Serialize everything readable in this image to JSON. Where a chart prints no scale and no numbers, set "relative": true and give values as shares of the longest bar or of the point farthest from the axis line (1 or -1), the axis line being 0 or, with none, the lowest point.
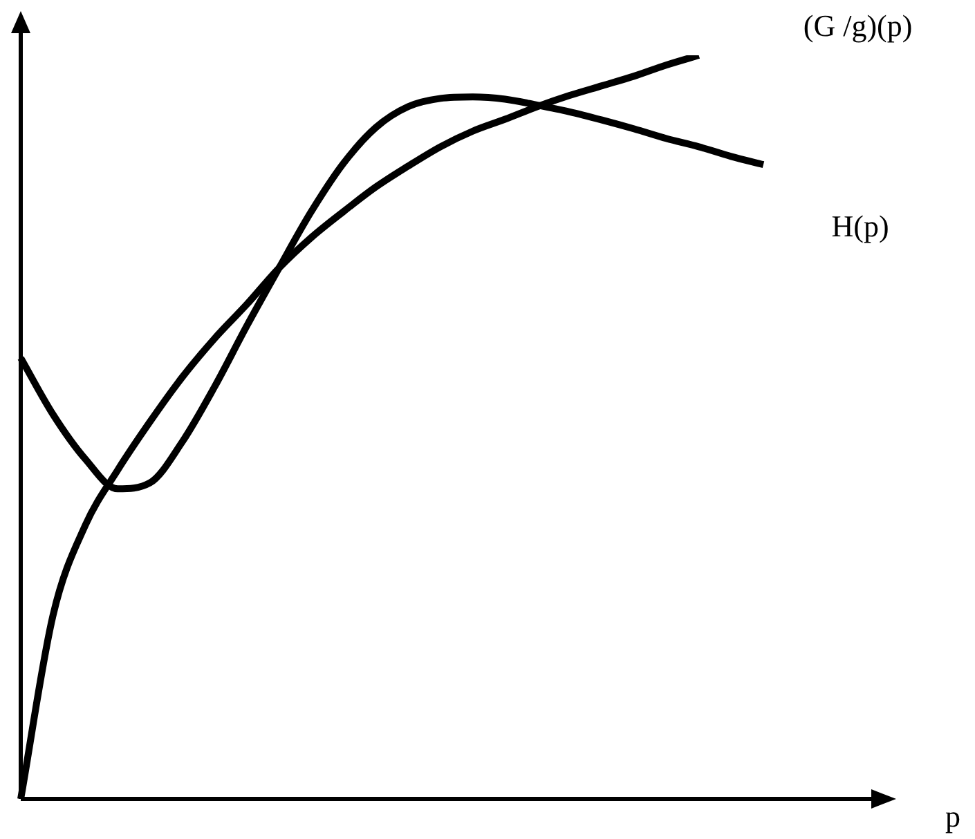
{
  "chart_data": {
    "type": "line",
    "relative": true,
    "annotations": [
      "p"
    ],
    "marker": "none",
    "line_style": "solid",
    "categories": [
      null,
      null,
      null,
      null,
      null,
      null,
      null,
      null,
      null,
      null,
      null,
      null,
      null,
      null,
      null,
      null,
      null,
      null,
      null,
      null,
      null,
      null,
      null,
      null
    ],
    "series": [
      {
        "name": "(G /g)(p)",
        "color": "#000000",
        "values": [
          0,
          0.247,
          0.368,
          0.442,
          0.507,
          0.567,
          0.619,
          0.665,
          0.714,
          0.755,
          0.79,
          0.823,
          0.851,
          0.877,
          0.898,
          0.914,
          0.931,
          0.946,
          0.959,
          0.972,
          0.987,
          1,
          null,
          null
        ]
      },
      {
        "name": "H(p)",
        "color": "#000000",
        "values": [
          0.593,
          0.517,
          0.457,
          0.417,
          0.425,
          0.48,
          0.554,
          0.636,
          0.714,
          0.79,
          0.855,
          0.903,
          0.931,
          0.942,
          0.944,
          0.941,
          0.933,
          0.924,
          0.913,
          0.901,
          0.888,
          0.877,
          0.864,
          0.853
        ]
      }
    ]
  }
}
